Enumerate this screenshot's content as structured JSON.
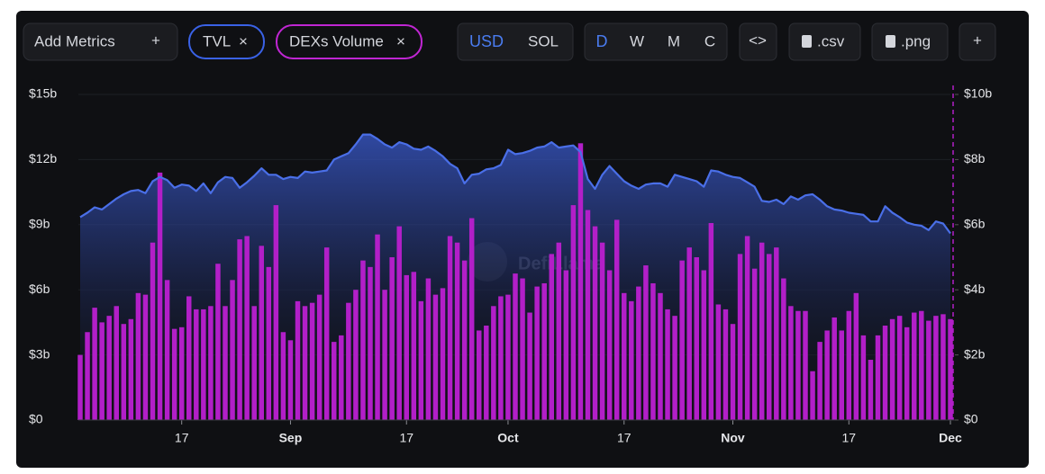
{
  "toolbar": {
    "add_metrics": "Add Metrics",
    "currencies": [
      "USD",
      "SOL"
    ],
    "periods": [
      "D",
      "W",
      "M",
      "C"
    ],
    "embed": "<>",
    "csv": ".csv",
    "png": ".png",
    "add": "+"
  },
  "chart_data": {
    "type": "bar-line",
    "watermark": "DefiLlama",
    "x": [
      "08-03",
      "08-04",
      "08-05",
      "08-06",
      "08-07",
      "08-08",
      "08-09",
      "08-10",
      "08-11",
      "08-12",
      "08-13",
      "08-14",
      "08-15",
      "08-16",
      "08-17",
      "08-18",
      "08-19",
      "08-20",
      "08-21",
      "08-22",
      "08-23",
      "08-24",
      "08-25",
      "08-26",
      "08-27",
      "08-28",
      "08-29",
      "08-30",
      "08-31",
      "09-01",
      "09-02",
      "09-03",
      "09-04",
      "09-05",
      "09-06",
      "09-07",
      "09-08",
      "09-09",
      "09-10",
      "09-11",
      "09-12",
      "09-13",
      "09-14",
      "09-15",
      "09-16",
      "09-17",
      "09-18",
      "09-19",
      "09-20",
      "09-21",
      "09-22",
      "09-23",
      "09-24",
      "09-25",
      "09-26",
      "09-27",
      "09-28",
      "09-29",
      "09-30",
      "10-01",
      "10-02",
      "10-03",
      "10-04",
      "10-05",
      "10-06",
      "10-07",
      "10-08",
      "10-09",
      "10-10",
      "10-11",
      "10-12",
      "10-13",
      "10-14",
      "10-15",
      "10-16",
      "10-17",
      "10-18",
      "10-19",
      "10-20",
      "10-21",
      "10-22",
      "10-23",
      "10-24",
      "10-25",
      "10-26",
      "10-27",
      "10-28",
      "10-29",
      "10-30",
      "10-31",
      "11-01",
      "11-02",
      "11-03",
      "11-04",
      "11-05",
      "11-06",
      "11-07",
      "11-08",
      "11-09",
      "11-10",
      "11-11",
      "11-12",
      "11-13",
      "11-14",
      "11-15",
      "11-16",
      "11-17",
      "11-18",
      "11-19",
      "11-20",
      "11-21",
      "11-22",
      "11-23",
      "11-24",
      "11-25",
      "11-26",
      "11-27",
      "11-28",
      "11-29",
      "11-30",
      "12-01"
    ],
    "xlim": [
      "08-03",
      "12-01"
    ],
    "xticks": [
      {
        "value": "08-17",
        "label": "17"
      },
      {
        "value": "09-01",
        "label": "Sep"
      },
      {
        "value": "09-17",
        "label": "17"
      },
      {
        "value": "10-01",
        "label": "Oct"
      },
      {
        "value": "10-17",
        "label": "17"
      },
      {
        "value": "11-01",
        "label": "Nov"
      },
      {
        "value": "11-17",
        "label": "17"
      },
      {
        "value": "12-01",
        "label": "Dec"
      }
    ],
    "ylim": [
      0,
      15
    ],
    "yticks": [
      {
        "value": 0,
        "label": "$0"
      },
      {
        "value": 3,
        "label": "$3b"
      },
      {
        "value": 6,
        "label": "$6b"
      },
      {
        "value": 9,
        "label": "$9b"
      },
      {
        "value": 12,
        "label": "$12b"
      },
      {
        "value": 15,
        "label": "$15b"
      }
    ],
    "y2lim": [
      0,
      10
    ],
    "y2ticks": [
      {
        "value": 0,
        "label": "$0"
      },
      {
        "value": 2,
        "label": "$2b"
      },
      {
        "value": 4,
        "label": "$4b"
      },
      {
        "value": 6,
        "label": "$6b"
      },
      {
        "value": 8,
        "label": "$8b"
      },
      {
        "value": 10,
        "label": "$10b"
      }
    ],
    "series": [
      {
        "name": "TVL",
        "type": "line",
        "axis": "y",
        "color": "#4a6fe8",
        "values": [
          9.35,
          9.55,
          9.8,
          9.7,
          9.95,
          10.2,
          10.4,
          10.55,
          10.6,
          10.45,
          11.0,
          11.2,
          11.05,
          10.7,
          10.85,
          10.8,
          10.55,
          10.9,
          10.45,
          10.95,
          11.2,
          11.15,
          10.7,
          10.95,
          11.25,
          11.6,
          11.3,
          11.3,
          11.1,
          11.2,
          11.15,
          11.45,
          11.4,
          11.45,
          11.5,
          12.0,
          12.15,
          12.3,
          12.7,
          13.15,
          13.15,
          12.95,
          12.7,
          12.55,
          12.8,
          12.7,
          12.5,
          12.45,
          12.6,
          12.4,
          12.15,
          11.8,
          11.6,
          10.9,
          11.3,
          11.35,
          11.55,
          11.6,
          11.75,
          12.45,
          12.25,
          12.3,
          12.4,
          12.55,
          12.6,
          12.8,
          12.55,
          12.6,
          12.65,
          12.35,
          11.1,
          10.65,
          11.3,
          11.7,
          11.35,
          11.0,
          10.8,
          10.65,
          10.85,
          10.9,
          10.9,
          10.75,
          11.3,
          11.2,
          11.1,
          11.0,
          10.75,
          11.5,
          11.45,
          11.3,
          11.2,
          11.15,
          10.95,
          10.75,
          10.1,
          10.05,
          10.15,
          9.95,
          10.3,
          10.15,
          10.35,
          10.4,
          10.15,
          9.85,
          9.7,
          9.65,
          9.55,
          9.5,
          9.45,
          9.15,
          9.15,
          9.85,
          9.55,
          9.35,
          9.1,
          9.0,
          8.95,
          8.75,
          9.15,
          9.05,
          8.6
        ]
      },
      {
        "name": "DEXs Volume",
        "type": "bar",
        "axis": "y2",
        "color": "#b21fc8",
        "values": [
          2.0,
          2.7,
          3.45,
          3.0,
          3.2,
          3.5,
          2.95,
          3.1,
          3.9,
          3.85,
          5.45,
          7.6,
          4.3,
          2.8,
          2.85,
          3.8,
          3.4,
          3.4,
          3.5,
          4.8,
          3.5,
          4.3,
          5.55,
          5.65,
          3.5,
          5.35,
          4.7,
          6.6,
          2.7,
          2.45,
          3.65,
          3.5,
          3.6,
          3.85,
          5.3,
          2.4,
          2.6,
          3.6,
          4.0,
          4.9,
          4.7,
          5.7,
          4.0,
          5.0,
          5.95,
          4.45,
          4.55,
          3.65,
          4.35,
          3.85,
          4.05,
          5.65,
          5.45,
          4.9,
          6.2,
          2.75,
          2.9,
          3.5,
          3.8,
          3.85,
          4.5,
          4.35,
          3.3,
          4.1,
          4.2,
          5.1,
          5.45,
          4.6,
          6.6,
          8.5,
          6.45,
          5.95,
          5.45,
          4.6,
          6.15,
          3.9,
          3.65,
          4.1,
          4.75,
          4.2,
          3.9,
          3.4,
          3.2,
          4.9,
          5.3,
          5.0,
          4.6,
          6.05,
          3.55,
          3.4,
          2.95,
          5.1,
          5.65,
          4.65,
          5.45,
          5.1,
          5.3,
          4.35,
          3.5,
          3.35,
          3.35,
          1.5,
          2.4,
          2.75,
          3.15,
          2.75,
          3.35,
          3.9,
          2.6,
          1.85,
          2.6,
          2.9,
          3.1,
          3.2,
          2.85,
          3.3,
          3.35,
          3.05,
          3.2,
          3.25,
          3.1
        ]
      }
    ]
  }
}
